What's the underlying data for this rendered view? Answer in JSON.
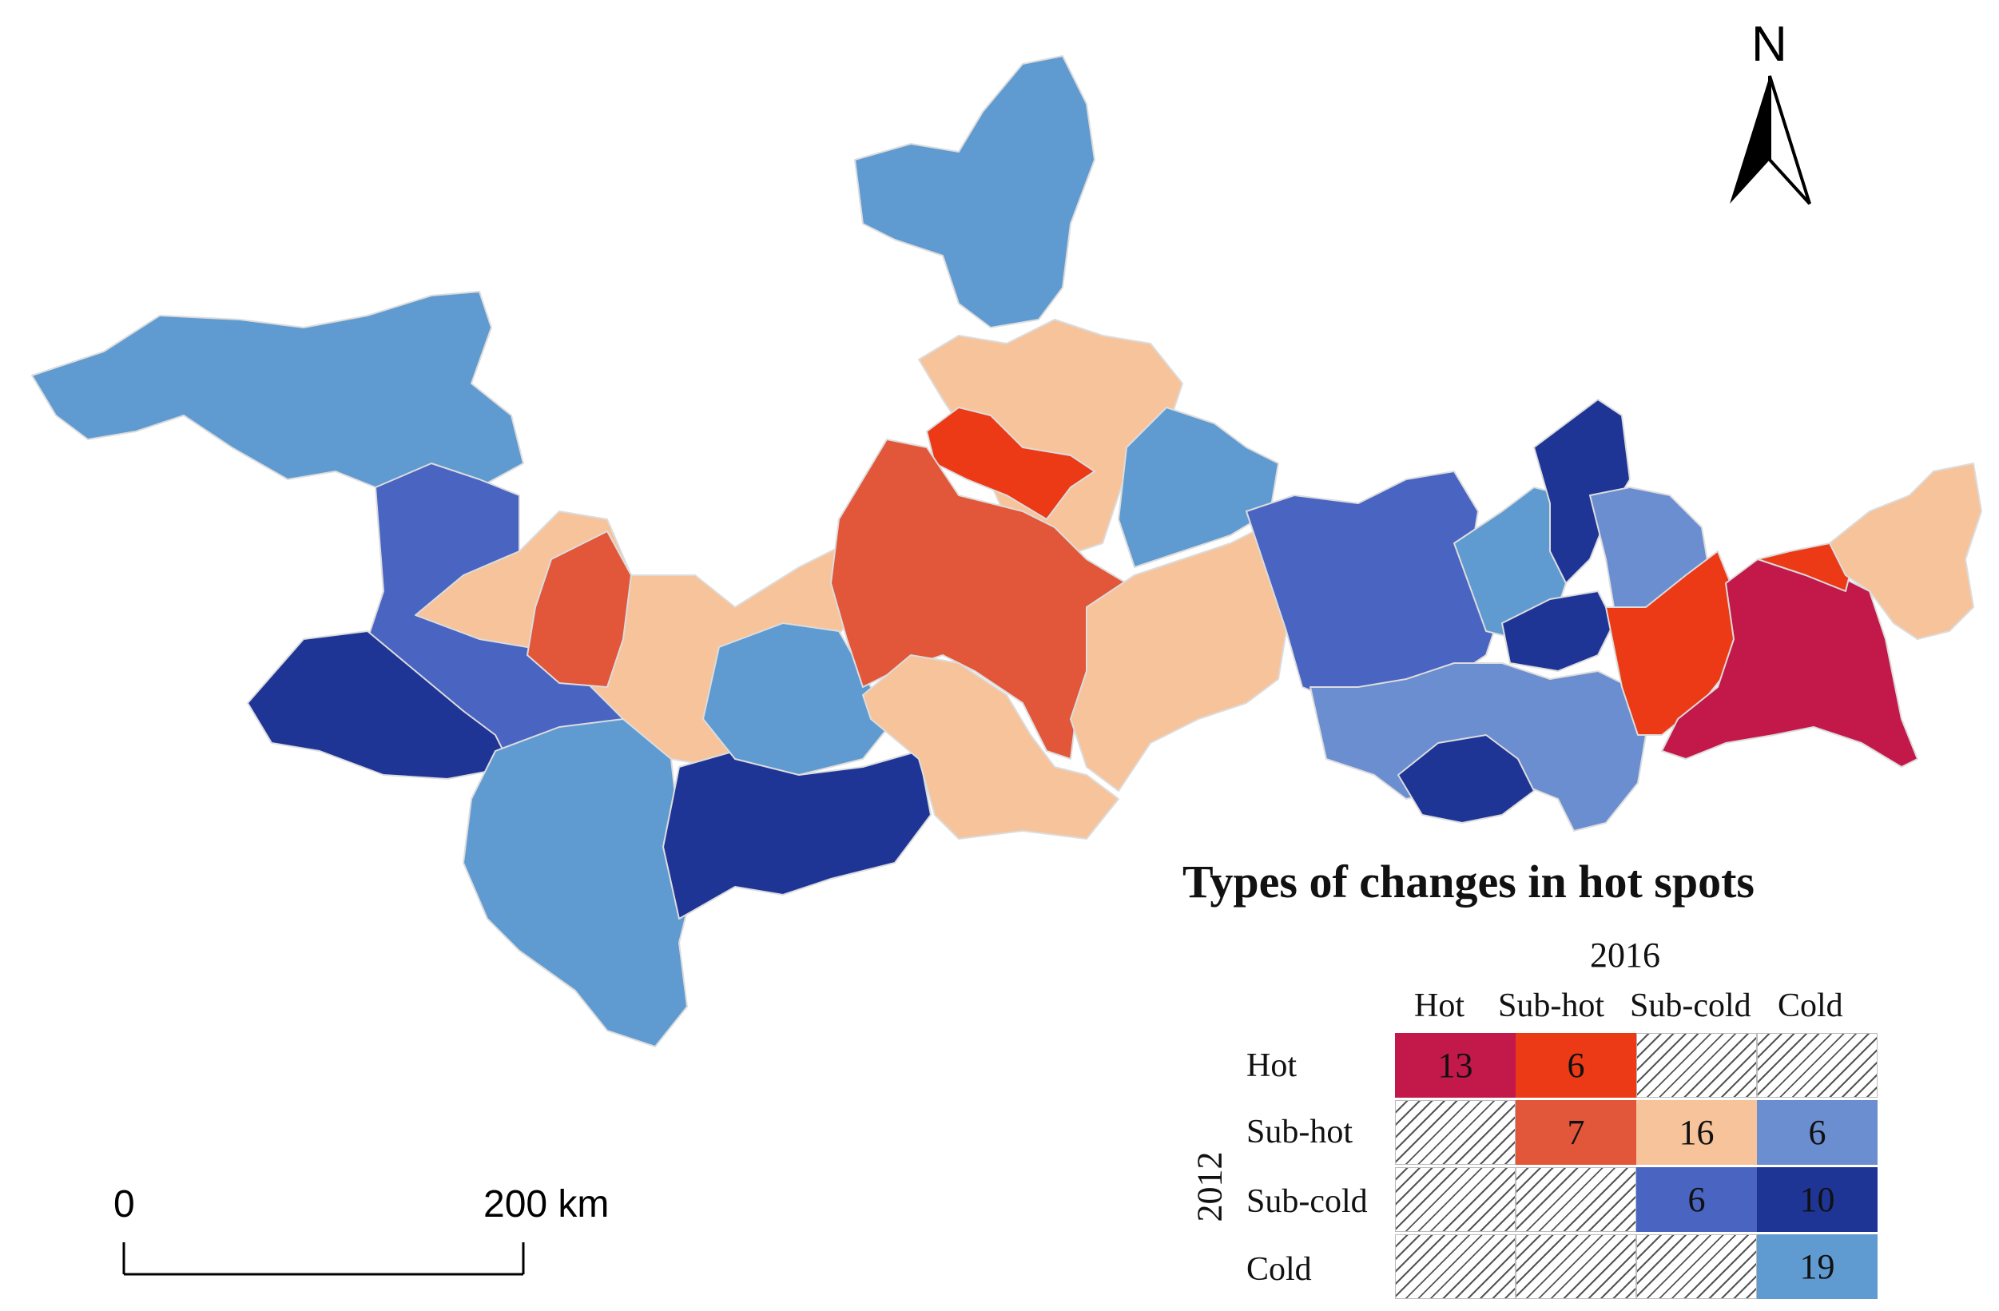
{
  "legend": {
    "title": "Types of changes in hot spots",
    "year_columns": "2016",
    "year_rows": "2012",
    "columns": [
      "Hot",
      "Sub-hot",
      "Sub-cold",
      "Cold"
    ],
    "rows": [
      "Hot",
      "Sub-hot",
      "Sub-cold",
      "Cold"
    ],
    "matrix": [
      [
        13,
        6,
        null,
        null
      ],
      [
        null,
        7,
        16,
        6
      ],
      [
        null,
        null,
        6,
        10
      ],
      [
        null,
        null,
        null,
        19
      ]
    ],
    "cell_colors": [
      [
        "#c2184a",
        "#ec3a16",
        null,
        null
      ],
      [
        null,
        "#e2563a",
        "#f7c39a",
        "#6b8ed0"
      ],
      [
        null,
        null,
        "#4a64c2",
        "#1f3596"
      ],
      [
        null,
        null,
        null,
        "#5f9bd1"
      ]
    ]
  },
  "north_arrow": {
    "label": "N"
  },
  "scale_bar": {
    "start_label": "0",
    "end_label": "200 km"
  },
  "colors": {
    "hot_hot": "#c2184a",
    "hot_subhot": "#ec3a16",
    "subhot_subhot": "#e2563a",
    "subhot_subcold": "#f7c39a",
    "subhot_cold": "#6b8ed0",
    "subcold_subcold": "#4a64c2",
    "subcold_cold": "#1f3596",
    "cold_cold": "#5f9bd1"
  }
}
